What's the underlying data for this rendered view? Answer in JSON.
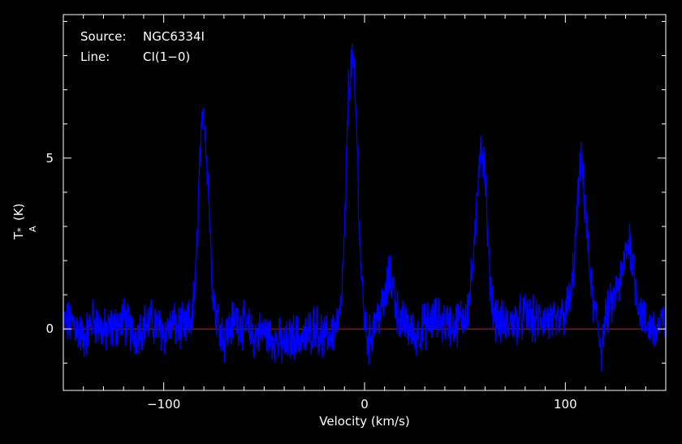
{
  "annotations": {
    "source_label": "Source:",
    "source_value": "NGC6334I",
    "line_label": "Line:",
    "line_value": "CI(1−0)"
  },
  "chart_data": {
    "type": "line",
    "xlabel": "Velocity (km/s)",
    "ylabel_main": "T",
    "ylabel_sup": "*",
    "ylabel_sub": "A",
    "ylabel_unit": "(K)",
    "xlim": [
      -150,
      150
    ],
    "ylim": [
      -1.8,
      9.2
    ],
    "xticks": [
      -100,
      0,
      100
    ],
    "xtick_labels": [
      "−100",
      "0",
      "100"
    ],
    "yticks": [
      0,
      5
    ],
    "ytick_labels": [
      "0",
      "5"
    ],
    "grid": false,
    "colors": {
      "background": "#000000",
      "axes": "#ffffff",
      "spectrum": "#0000ff",
      "baseline": "#ff0000"
    },
    "baseline": {
      "y": 0
    },
    "series": [
      {
        "color": "#0000ff",
        "x": [
          -150,
          -145,
          -140,
          -135,
          -130,
          -125,
          -120,
          -115,
          -110,
          -105,
          -100,
          -95,
          -90,
          -86,
          -84,
          -82,
          -80,
          -78,
          -76,
          -74,
          -72,
          -70,
          -65,
          -60,
          -55,
          -50,
          -45,
          -40,
          -35,
          -30,
          -25,
          -20,
          -15,
          -12,
          -10,
          -8,
          -6,
          -4,
          -2,
          0,
          2,
          5,
          8,
          10,
          12,
          14,
          16,
          18,
          20,
          25,
          30,
          35,
          40,
          45,
          50,
          52,
          55,
          57,
          58,
          60,
          62,
          64,
          66,
          70,
          75,
          80,
          85,
          90,
          95,
          100,
          103,
          105,
          107,
          108,
          110,
          112,
          114,
          116,
          118,
          120,
          125,
          128,
          130,
          132,
          134,
          136,
          140,
          145,
          150
        ],
        "y": [
          0.1,
          0.2,
          -0.3,
          0.3,
          -0.1,
          0.0,
          0.3,
          -0.2,
          0.1,
          0.2,
          -0.1,
          0.1,
          0.0,
          0.3,
          1.5,
          5.0,
          6.4,
          4.5,
          1.5,
          0.4,
          0.2,
          -0.3,
          0.3,
          0.1,
          -0.2,
          -0.1,
          -0.3,
          -0.5,
          -0.2,
          -0.3,
          0.1,
          -0.3,
          0.0,
          0.4,
          2.5,
          7.0,
          8.0,
          6.0,
          2.0,
          0.2,
          -0.4,
          0.2,
          0.5,
          0.8,
          1.5,
          1.3,
          0.6,
          0.1,
          0.2,
          -0.2,
          0.1,
          0.3,
          0.2,
          0.1,
          0.4,
          0.8,
          2.5,
          5.0,
          5.5,
          4.5,
          1.8,
          0.5,
          0.3,
          0.1,
          0.2,
          0.4,
          0.2,
          0.3,
          0.1,
          0.5,
          1.0,
          2.5,
          4.5,
          4.8,
          3.5,
          1.8,
          0.6,
          0.2,
          -0.6,
          0.3,
          1.0,
          1.5,
          2.2,
          2.6,
          1.8,
          0.8,
          0.1,
          0.0,
          0.2
        ]
      }
    ]
  }
}
